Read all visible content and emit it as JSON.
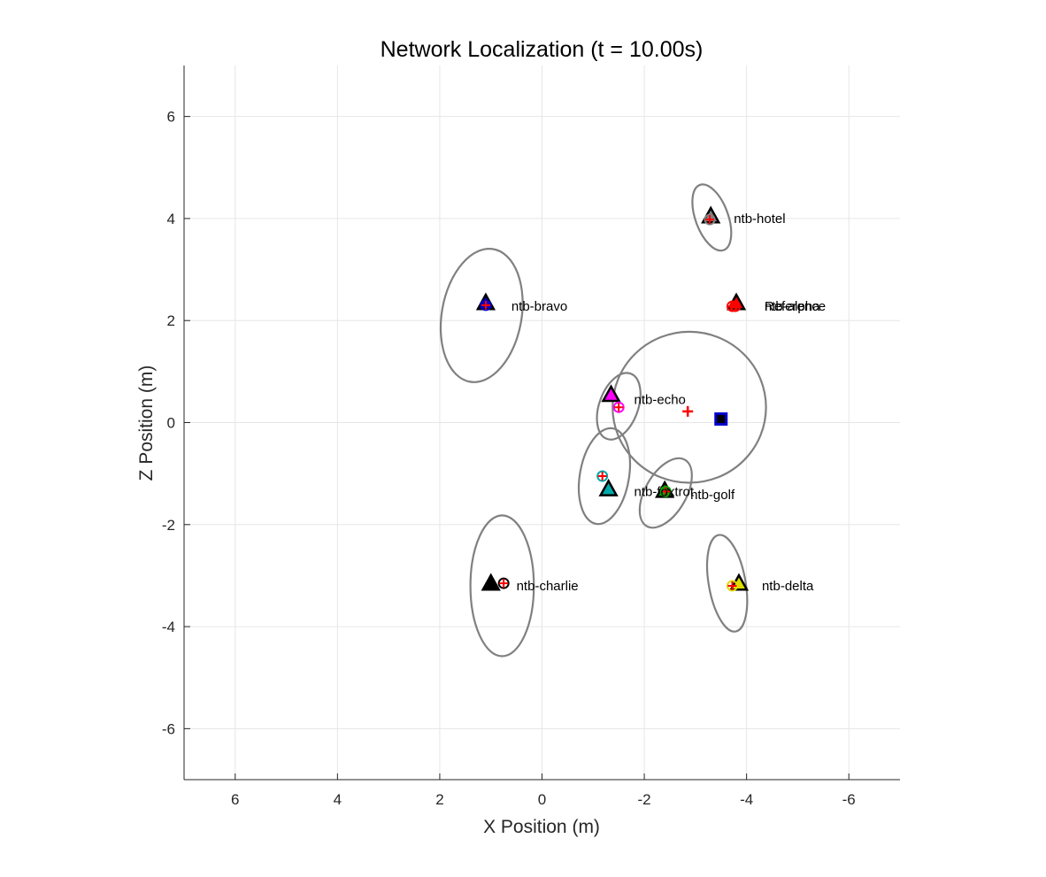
{
  "chart_data": {
    "type": "scatter",
    "title": "Network Localization (t = 10.00s)",
    "xlabel": "X Position (m)",
    "ylabel": "Z Position (m)",
    "xlim": [
      7,
      -7
    ],
    "ylim": [
      -7,
      7
    ],
    "x_direction": "reversed",
    "grid": true,
    "x_ticks": [
      6,
      4,
      2,
      0,
      -2,
      -4,
      -6
    ],
    "x_tick_labels": [
      "6",
      "4",
      "2",
      "0",
      "-2",
      "-4",
      "-6"
    ],
    "y_ticks": [
      6,
      4,
      2,
      0,
      -2,
      -4,
      -6
    ],
    "y_tick_labels": [
      "6",
      "4",
      "2",
      "0",
      "-2",
      "-4",
      "-6"
    ],
    "colors": {
      "ellipse": "#808080",
      "grid": "#e6e6e6",
      "axis": "#262626",
      "true_marker": "#000000",
      "estimate_marker": "#ff0000"
    },
    "nodes": [
      {
        "name": "ntb-hotel",
        "color": "#808080",
        "true_pos": [
          -3.3,
          4.05
        ],
        "est_pos": [
          -3.28,
          3.98
        ],
        "ellipse": {
          "center": [
            -3.32,
            4.02
          ],
          "rx": 0.32,
          "ry": 0.68,
          "angle_deg": -20
        }
      },
      {
        "name": "ntb-bravo",
        "color": "#0000cc",
        "true_pos": [
          1.1,
          2.35
        ],
        "est_pos": [
          1.1,
          2.3
        ],
        "ellipse": {
          "center": [
            1.18,
            2.1
          ],
          "rx": 0.78,
          "ry": 1.32,
          "angle_deg": 10
        }
      },
      {
        "name": "ntb-alpha",
        "color": "#ff0000",
        "true_pos": [
          -3.8,
          2.35
        ],
        "est_pos": [
          -3.78,
          2.28
        ],
        "ellipse": null
      },
      {
        "name": "Reference",
        "color": "#ff0000",
        "true_pos": null,
        "est_pos": [
          -3.72,
          2.28
        ],
        "ellipse": null
      },
      {
        "name": "ntb-echo",
        "color": "#ff00ff",
        "true_pos": [
          -1.35,
          0.55
        ],
        "est_pos": [
          -1.5,
          0.3
        ],
        "ellipse": {
          "center": [
            -1.5,
            0.32
          ],
          "rx": 0.38,
          "ry": 0.68,
          "angle_deg": 20
        }
      },
      {
        "name": "ntb-foxtrot",
        "color": "#00aaaa",
        "true_pos": [
          -1.3,
          -1.3
        ],
        "est_pos": [
          -1.18,
          -1.05
        ],
        "ellipse": {
          "center": [
            -1.22,
            -1.05
          ],
          "rx": 0.48,
          "ry": 0.95,
          "angle_deg": 10
        }
      },
      {
        "name": "ntb-golf",
        "color": "#00aa00",
        "true_pos": [
          -2.4,
          -1.33
        ],
        "est_pos": [
          -2.42,
          -1.35
        ],
        "ellipse": {
          "center": [
            -2.42,
            -1.38
          ],
          "rx": 0.4,
          "ry": 0.75,
          "angle_deg": 30
        }
      },
      {
        "name": "ntb-charlie",
        "color": "#000000",
        "true_pos": [
          1.0,
          -3.15
        ],
        "est_pos": [
          0.75,
          -3.15
        ],
        "ellipse": {
          "center": [
            0.78,
            -3.2
          ],
          "rx": 0.62,
          "ry": 1.38,
          "angle_deg": 0
        }
      },
      {
        "name": "ntb-delta",
        "color": "#dddd00",
        "true_pos": [
          -3.85,
          -3.15
        ],
        "est_pos": [
          -3.72,
          -3.2
        ],
        "ellipse": {
          "center": [
            -3.62,
            -3.15
          ],
          "rx": 0.36,
          "ry": 0.96,
          "angle_deg": -10
        }
      }
    ],
    "annotations": [
      {
        "text": "ntb-hotel",
        "x": -3.75,
        "y": 4.0
      },
      {
        "text": "ntb-bravo",
        "x": 0.6,
        "y": 2.28
      },
      {
        "text": "ntb-alpha",
        "x": -4.35,
        "y": 2.28
      },
      {
        "text": "Reference",
        "x": -4.35,
        "y": 2.28
      },
      {
        "text": "ntb-echo",
        "x": -1.8,
        "y": 0.45
      },
      {
        "text": "ntb-foxtrot",
        "x": -1.8,
        "y": -1.35
      },
      {
        "text": "ntb-golf",
        "x": -2.9,
        "y": -1.41
      },
      {
        "text": "ntb-charlie",
        "x": 0.5,
        "y": -3.2
      },
      {
        "text": "ntb-delta",
        "x": -4.3,
        "y": -3.2
      }
    ],
    "anchor_ellipse": {
      "center": [
        -2.88,
        0.3
      ],
      "rx": 1.5,
      "ry": 1.48
    },
    "anchor_marker": {
      "pos": [
        -3.5,
        0.07
      ],
      "color": "#0000cc"
    },
    "origin_estimate": {
      "pos": [
        -2.85,
        0.22
      ],
      "color": "#ff0000"
    }
  }
}
